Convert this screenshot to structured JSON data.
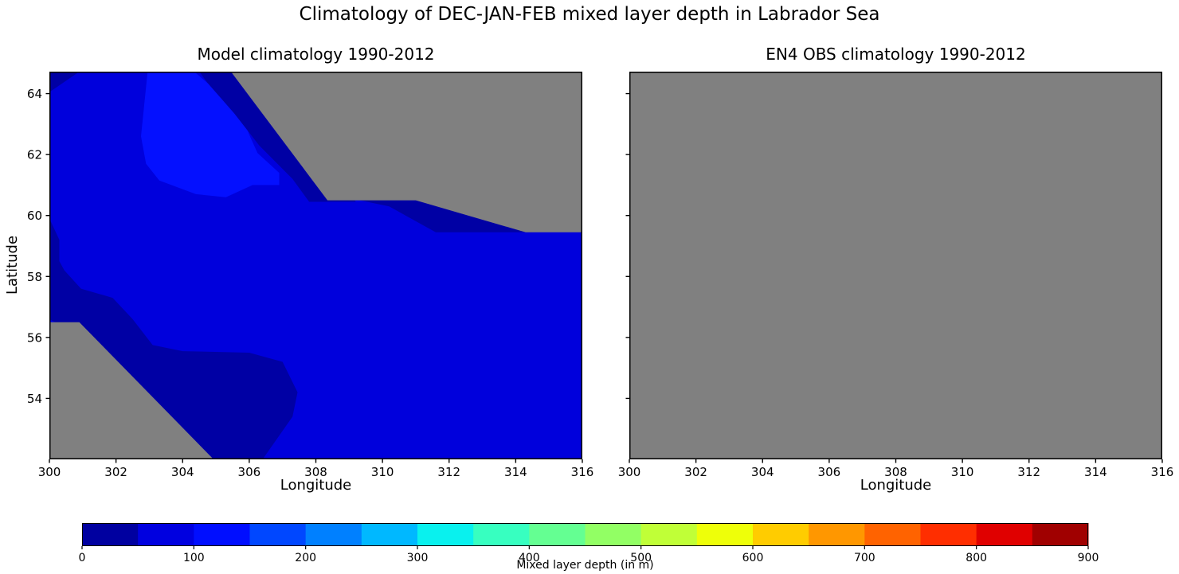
{
  "figure": {
    "suptitle": "Climatology of DEC-JAN-FEB mixed layer depth in Labrador Sea",
    "background_color": "#ffffff",
    "axes_color": "#000000"
  },
  "colorbar": {
    "label": "Mixed layer depth (in m)",
    "orientation": "horizontal",
    "vmin": 0,
    "vmax": 900,
    "segment_size_m": 50,
    "tick_labels": [
      "0",
      "100",
      "200",
      "300",
      "400",
      "500",
      "600",
      "700",
      "800",
      "900"
    ],
    "segment_colors": [
      "#0000a0",
      "#0000e0",
      "#000eff",
      "#0047ff",
      "#0080ff",
      "#00b8ff",
      "#09f1ee",
      "#37ffc0",
      "#64ff92",
      "#92ff64",
      "#c0ff37",
      "#eeff09",
      "#ffcc00",
      "#ff9700",
      "#ff6300",
      "#ff2e00",
      "#e00000",
      "#a00000"
    ],
    "colormap": "jet-discrete-18"
  },
  "chart_data": [
    {
      "type": "heatmap",
      "subtype": "filled-contour-map",
      "title": "Model climatology 1990-2012",
      "xlabel": "Longitude",
      "ylabel": "Latitude",
      "xlim": [
        300,
        316
      ],
      "ylim": [
        52,
        64.72
      ],
      "xticks": [
        300,
        302,
        304,
        306,
        308,
        310,
        312,
        314,
        316
      ],
      "yticks": [
        54,
        56,
        58,
        60,
        62,
        64
      ],
      "show_ytick_labels": true,
      "units": "m",
      "background_color": "#0000dc",
      "background_level_m": [
        50,
        100
      ],
      "regions": [
        {
          "name": "mld-100-150-patch-north",
          "range_m": [
            100,
            150
          ],
          "color": "#0410ff",
          "polygon": [
            [
              302.95,
              64.72
            ],
            [
              304.35,
              64.72
            ],
            [
              304.9,
              64.2
            ],
            [
              305.7,
              63.45
            ],
            [
              306.0,
              62.65
            ],
            [
              306.25,
              62.05
            ],
            [
              306.9,
              61.4
            ],
            [
              306.9,
              61.0
            ],
            [
              306.1,
              61.0
            ],
            [
              305.3,
              60.6
            ],
            [
              304.4,
              60.7
            ],
            [
              303.3,
              61.15
            ],
            [
              302.9,
              61.7
            ],
            [
              302.75,
              62.6
            ]
          ]
        },
        {
          "name": "mld-0-50-northwest-corner",
          "range_m": [
            0,
            50
          ],
          "color": "#0000a4",
          "polygon": [
            [
              300,
              64.72
            ],
            [
              300.9,
              64.72
            ],
            [
              300,
              64.05
            ]
          ]
        },
        {
          "name": "mld-0-50-coastal-band-northeast",
          "range_m": [
            0,
            50
          ],
          "color": "#0000a4",
          "polygon": [
            [
              304.5,
              64.72
            ],
            [
              306.3,
              64.72
            ],
            [
              309.2,
              60.45
            ],
            [
              307.8,
              60.45
            ],
            [
              307.3,
              61.2
            ],
            [
              306.3,
              62.3
            ],
            [
              305.55,
              63.35
            ],
            [
              304.75,
              64.35
            ]
          ]
        },
        {
          "name": "mld-0-50-wedge-east",
          "range_m": [
            0,
            50
          ],
          "color": "#0000a4",
          "polygon": [
            [
              309.1,
              60.55
            ],
            [
              311.2,
              60.55
            ],
            [
              314.5,
              59.45
            ],
            [
              311.6,
              59.45
            ],
            [
              310.2,
              60.3
            ]
          ]
        },
        {
          "name": "mld-0-50-band-southwest",
          "range_m": [
            0,
            50
          ],
          "color": "#0000a4",
          "polygon": [
            [
              300,
              59.9
            ],
            [
              300.3,
              59.2
            ],
            [
              300.3,
              58.5
            ],
            [
              300.45,
              58.2
            ],
            [
              300.95,
              57.6
            ],
            [
              301.9,
              57.3
            ],
            [
              302.5,
              56.6
            ],
            [
              303.1,
              55.75
            ],
            [
              304.0,
              55.55
            ],
            [
              306.0,
              55.5
            ],
            [
              307.0,
              55.2
            ],
            [
              307.45,
              54.2
            ],
            [
              307.3,
              53.4
            ],
            [
              306.4,
              52.0
            ],
            [
              304.2,
              52.0
            ],
            [
              300.5,
              56.3
            ],
            [
              300,
              56.6
            ]
          ]
        },
        {
          "name": "land-mask-northeast",
          "value": "masked",
          "color": "#808080",
          "polygon": [
            [
              305.45,
              64.72
            ],
            [
              316,
              64.72
            ],
            [
              316,
              59.45
            ],
            [
              314.3,
              59.45
            ],
            [
              311.0,
              60.5
            ],
            [
              308.35,
              60.5
            ]
          ]
        },
        {
          "name": "land-mask-southwest",
          "value": "masked",
          "color": "#808080",
          "polygon": [
            [
              300,
              56.5
            ],
            [
              300.9,
              56.5
            ],
            [
              304.93,
              52.0
            ],
            [
              300,
              52.0
            ]
          ]
        }
      ]
    },
    {
      "type": "heatmap",
      "subtype": "filled-contour-map",
      "title": "EN4 OBS climatology 1990-2012",
      "xlabel": "Longitude",
      "ylabel": "",
      "xlim": [
        300,
        316
      ],
      "ylim": [
        52,
        64.72
      ],
      "xticks": [
        300,
        302,
        304,
        306,
        308,
        310,
        312,
        314,
        316
      ],
      "yticks": [
        54,
        56,
        58,
        60,
        62,
        64
      ],
      "show_ytick_labels": false,
      "units": "m",
      "background_color": "#808080",
      "regions": [
        {
          "name": "all-masked-no-data",
          "value": "masked",
          "color": "#808080",
          "polygon": [
            [
              300,
              52
            ],
            [
              316,
              52
            ],
            [
              316,
              64.72
            ],
            [
              300,
              64.72
            ]
          ]
        }
      ]
    }
  ]
}
